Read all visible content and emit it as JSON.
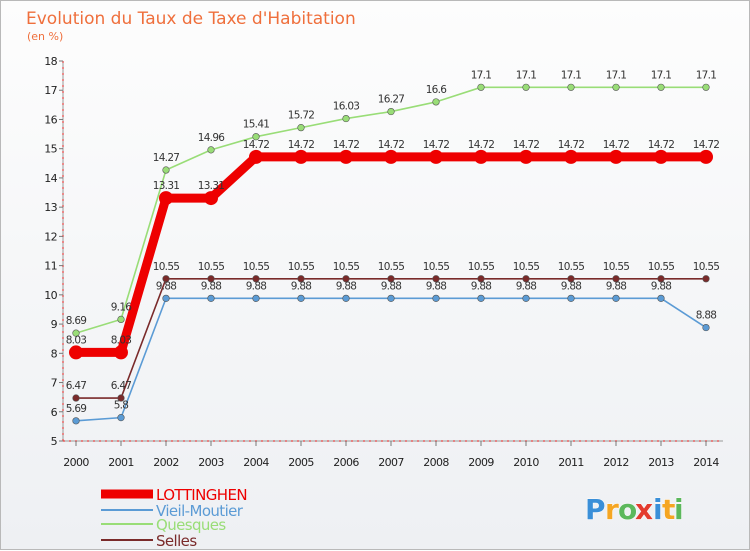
{
  "chart_data": {
    "type": "line",
    "title": "Evolution du Taux de Taxe d'Habitation",
    "unit_label": "(en %)",
    "xlabel": "",
    "ylabel": "",
    "ylim": [
      5,
      18
    ],
    "y_ticks": [
      "5",
      "6",
      "7",
      "8",
      "9",
      "10",
      "11",
      "12",
      "13",
      "14",
      "15",
      "16",
      "17",
      "18"
    ],
    "categories": [
      "2000",
      "2001",
      "2002",
      "2003",
      "2004",
      "2005",
      "2006",
      "2007",
      "2008",
      "2009",
      "2010",
      "2011",
      "2012",
      "2013",
      "2014"
    ],
    "series": [
      {
        "name": "LOTTINGHEN",
        "color": "#ee0000",
        "values": [
          8.03,
          8.03,
          13.31,
          13.31,
          14.72,
          14.72,
          14.72,
          14.72,
          14.72,
          14.72,
          14.72,
          14.72,
          14.72,
          14.72,
          14.72
        ],
        "labels": [
          "8.03",
          "8.03",
          "13.31",
          "13.31",
          "14.72",
          "14.72",
          "14.72",
          "14.72",
          "14.72",
          "14.72",
          "14.72",
          "14.72",
          "14.72",
          "14.72",
          "14.72"
        ]
      },
      {
        "name": "Vieil-Moutier",
        "color": "#5b9bd5",
        "values": [
          5.69,
          5.8,
          9.88,
          9.88,
          9.88,
          9.88,
          9.88,
          9.88,
          9.88,
          9.88,
          9.88,
          9.88,
          9.88,
          9.88,
          8.88
        ],
        "labels": [
          "5.69",
          "5.8",
          "9.88",
          "9.88",
          "9.88",
          "9.88",
          "9.88",
          "9.88",
          "9.88",
          "9.88",
          "9.88",
          "9.88",
          "9.88",
          "9.88",
          "8.88"
        ]
      },
      {
        "name": "Quesques",
        "color": "#99dd77",
        "values": [
          8.69,
          9.16,
          14.27,
          14.96,
          15.41,
          15.72,
          16.03,
          16.27,
          16.6,
          17.1,
          17.1,
          17.1,
          17.1,
          17.1,
          17.1
        ],
        "labels": [
          "8.69",
          "9.16",
          "14.27",
          "14.96",
          "15.41",
          "15.72",
          "16.03",
          "16.27",
          "16.6",
          "17.1",
          "17.1",
          "17.1",
          "17.1",
          "17.1",
          "17.1"
        ]
      },
      {
        "name": "Selles",
        "color": "#7a2a2a",
        "values": [
          6.47,
          6.47,
          10.55,
          10.55,
          10.55,
          10.55,
          10.55,
          10.55,
          10.55,
          10.55,
          10.55,
          10.55,
          10.55,
          10.55,
          10.55
        ],
        "labels": [
          "6.47",
          "6.47",
          "10.55",
          "10.55",
          "10.55",
          "10.55",
          "10.55",
          "10.55",
          "10.55",
          "10.55",
          "10.55",
          "10.55",
          "10.55",
          "10.55",
          "10.55"
        ]
      }
    ],
    "legend": [
      "LOTTINGHEN",
      "Vieil-Moutier",
      "Quesques",
      "Selles"
    ],
    "legend_position": "bottom-left",
    "grid": false
  },
  "brand": {
    "letters": [
      "P",
      "r",
      "o",
      "x",
      "i",
      "t",
      "i"
    ],
    "colors": [
      "#3a8fd8",
      "#f5a623",
      "#5cb85c",
      "#e33b2e",
      "#3a8fd8",
      "#f5a623",
      "#5cb85c"
    ]
  }
}
